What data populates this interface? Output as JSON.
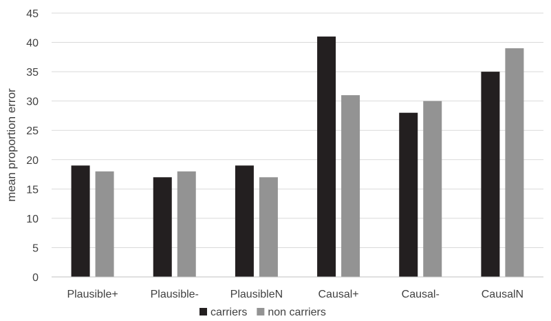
{
  "chart_data": {
    "type": "bar",
    "title": "",
    "xlabel": "",
    "ylabel": "mean proportion error",
    "ylim": [
      0,
      45
    ],
    "yticks": [
      "0",
      "5",
      "10",
      "15",
      "20",
      "25",
      "30",
      "35",
      "40",
      "45"
    ],
    "grid": "horizontal",
    "legend_position": "bottom",
    "categories": [
      "Plausible+",
      "Plausible-",
      "PlausibleN",
      "Causal+",
      "Causal-",
      "CausalN"
    ],
    "series": [
      {
        "name": "carriers",
        "color": "#231f20",
        "values": [
          19,
          17,
          19,
          41,
          28,
          35
        ]
      },
      {
        "name": "non carriers",
        "color": "#939393",
        "values": [
          18,
          18,
          17,
          31,
          30,
          39
        ]
      }
    ]
  }
}
